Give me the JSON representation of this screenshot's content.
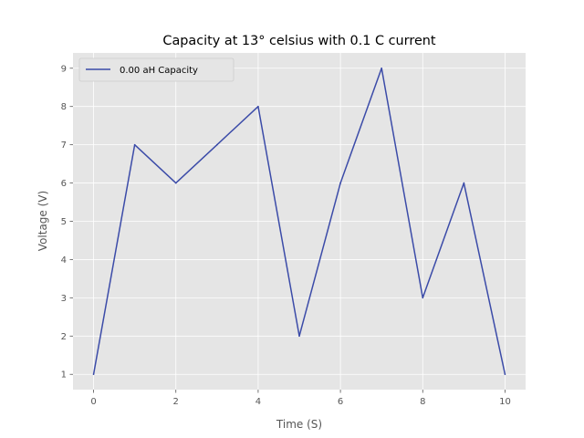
{
  "chart_data": {
    "type": "line",
    "title": "Capacity at 13° celsius with 0.1 C current",
    "xlabel": "Time (S)",
    "ylabel": "Voltage (V)",
    "x": [
      0,
      1,
      2,
      3,
      4,
      5,
      6,
      7,
      8,
      9,
      10
    ],
    "series": [
      {
        "name": "0.00 aH Capacity",
        "values": [
          1,
          7,
          6,
          7,
          8,
          2,
          6,
          9,
          3,
          6,
          1
        ],
        "color": "#3b4ba8"
      }
    ],
    "xlim": [
      -0.5,
      10.5
    ],
    "ylim": [
      0.6,
      9.4
    ],
    "xticks": [
      0,
      2,
      4,
      6,
      8,
      10
    ],
    "yticks": [
      1,
      2,
      3,
      4,
      5,
      6,
      7,
      8,
      9
    ],
    "grid": true,
    "legend_position": "upper left",
    "style": {
      "plot_background": "#e5e5e5",
      "grid_color": "#ffffff",
      "tick_color": "#555555"
    }
  }
}
